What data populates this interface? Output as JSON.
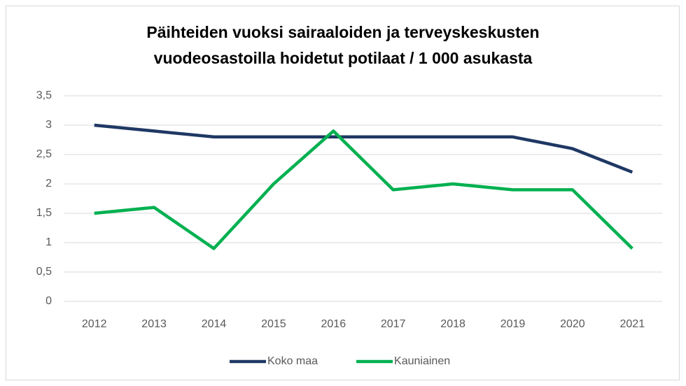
{
  "chart_data": {
    "type": "line",
    "title": "Päihteiden vuoksi sairaaloiden ja terveyskeskusten vuodeosastoilla hoidetut potilaat / 1 000 asukasta",
    "categories": [
      "2012",
      "2013",
      "2014",
      "2015",
      "2016",
      "2017",
      "2018",
      "2019",
      "2020",
      "2021"
    ],
    "series": [
      {
        "name": "Koko maa",
        "color": "#1f3864",
        "values": [
          3.0,
          2.9,
          2.8,
          2.8,
          2.8,
          2.8,
          2.8,
          2.8,
          2.6,
          2.2
        ]
      },
      {
        "name": "Kauniainen",
        "color": "#00b050",
        "values": [
          1.5,
          1.6,
          0.9,
          2.0,
          2.9,
          1.9,
          2.0,
          1.9,
          1.9,
          0.9
        ]
      }
    ],
    "ylim": [
      0,
      3.5
    ],
    "yticks": [
      0,
      {
        "value": 0.5,
        "label": "0,5"
      },
      1,
      {
        "value": 1.5,
        "label": "1,5"
      },
      2,
      {
        "value": 2.5,
        "label": "2,5"
      },
      3,
      {
        "value": 3.5,
        "label": "3,5"
      }
    ],
    "grid": true,
    "legend": "bottom"
  }
}
